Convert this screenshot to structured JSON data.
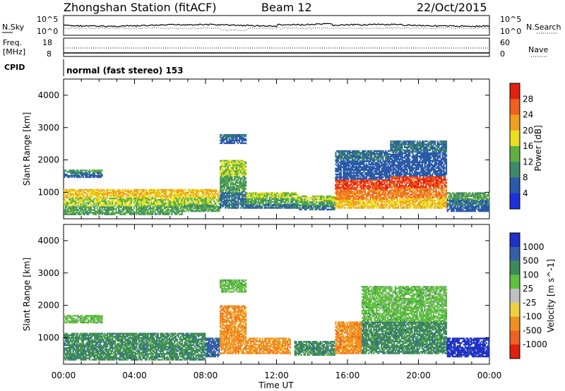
{
  "header": {
    "station": "Zhongshan Station (fitACF)",
    "beam": "Beam 12",
    "date": "22/Oct/2015"
  },
  "top_panel": {
    "left_label": "N.Sky",
    "right_label": "N.Search",
    "left_ticks": [
      "10^5",
      "10^0"
    ],
    "right_ticks": [
      "10^5",
      "10^0"
    ]
  },
  "freq_panel": {
    "left_label_1": "Freq.",
    "left_label_2": "[MHz]",
    "right_label": "Nave",
    "left_ticks": [
      "18",
      "8"
    ],
    "right_ticks": [
      "60",
      "0"
    ]
  },
  "cpid": {
    "label": "CPID",
    "text": "normal (fast stereo) 153"
  },
  "x_axis": {
    "label": "Time UT",
    "ticks": [
      "00:00",
      "04:00",
      "08:00",
      "12:00",
      "16:00",
      "20:00",
      "00:00"
    ]
  },
  "chart_data": [
    {
      "type": "heatmap",
      "title": "Power",
      "ylabel": "Slant Range [km]",
      "xlabel": "Time UT",
      "x_range_hours": [
        0,
        24
      ],
      "ylim": [
        180,
        4500
      ],
      "y_ticks": [
        1000,
        2000,
        3000,
        4000
      ],
      "colorbar": {
        "label": "Power [dB]",
        "range": [
          0,
          32
        ],
        "ticks": [
          4,
          8,
          12,
          16,
          20,
          24,
          28
        ],
        "colors": [
          "#2030e0",
          "#2a5aa8",
          "#3f8a6a",
          "#5fb040",
          "#e8e020",
          "#f0a020",
          "#f06020",
          "#e02010"
        ]
      },
      "echo_regions": [
        {
          "t0": 0.0,
          "t1": 6.7,
          "r0": 300,
          "r1": 1100,
          "level": 18
        },
        {
          "t0": 0.0,
          "t1": 2.2,
          "r0": 1450,
          "r1": 1700,
          "level": 8
        },
        {
          "t0": 6.7,
          "t1": 8.8,
          "r0": 400,
          "r1": 1100,
          "level": 16
        },
        {
          "t0": 8.8,
          "t1": 10.3,
          "r0": 500,
          "r1": 2000,
          "level": 12
        },
        {
          "t0": 8.8,
          "t1": 10.3,
          "r0": 2500,
          "r1": 2800,
          "level": 6
        },
        {
          "t0": 10.3,
          "t1": 13.2,
          "r0": 500,
          "r1": 1000,
          "level": 14
        },
        {
          "t0": 13.2,
          "t1": 15.3,
          "r0": 450,
          "r1": 900,
          "level": 12
        },
        {
          "t0": 15.3,
          "t1": 18.4,
          "r0": 500,
          "r1": 1400,
          "level": 26
        },
        {
          "t0": 15.3,
          "t1": 18.4,
          "r0": 1400,
          "r1": 2300,
          "level": 6
        },
        {
          "t0": 18.4,
          "t1": 21.6,
          "r0": 500,
          "r1": 1500,
          "level": 24
        },
        {
          "t0": 18.4,
          "t1": 21.6,
          "r0": 1500,
          "r1": 2600,
          "level": 6
        },
        {
          "t0": 21.6,
          "t1": 24.0,
          "r0": 400,
          "r1": 1000,
          "level": 10
        }
      ]
    },
    {
      "type": "heatmap",
      "title": "Velocity",
      "ylabel": "Slant Range [km]",
      "xlabel": "Time UT",
      "x_range_hours": [
        0,
        24
      ],
      "ylim": [
        180,
        4500
      ],
      "y_ticks": [
        1000,
        2000,
        3000,
        4000
      ],
      "colorbar": {
        "label": "Velocity [m s^-1]",
        "ticks": [
          "1000",
          "500",
          "100",
          "25",
          "-25",
          "-100",
          "-500",
          "-1000"
        ],
        "colors": [
          "#2030c8",
          "#3560a8",
          "#3f8a5a",
          "#60c040",
          "#c0c0c0",
          "#f0d040",
          "#f09020",
          "#f06020",
          "#e02010"
        ]
      },
      "echo_regions": [
        {
          "t0": 0.0,
          "t1": 8.0,
          "r0": 300,
          "r1": 1150,
          "level": "100"
        },
        {
          "t0": 0.0,
          "t1": 2.2,
          "r0": 1450,
          "r1": 1700,
          "level": "25"
        },
        {
          "t0": 8.0,
          "t1": 8.8,
          "r0": 400,
          "r1": 1000,
          "level": "500"
        },
        {
          "t0": 8.8,
          "t1": 10.3,
          "r0": 500,
          "r1": 2000,
          "level": "-500"
        },
        {
          "t0": 8.8,
          "t1": 10.3,
          "r0": 2400,
          "r1": 2800,
          "level": "25"
        },
        {
          "t0": 10.3,
          "t1": 12.8,
          "r0": 500,
          "r1": 1000,
          "level": "-500"
        },
        {
          "t0": 13.0,
          "t1": 15.3,
          "r0": 450,
          "r1": 900,
          "level": "100"
        },
        {
          "t0": 15.3,
          "t1": 16.8,
          "r0": 500,
          "r1": 1500,
          "level": "-500"
        },
        {
          "t0": 16.8,
          "t1": 21.6,
          "r0": 500,
          "r1": 1500,
          "level": "100"
        },
        {
          "t0": 16.8,
          "t1": 21.6,
          "r0": 1500,
          "r1": 2600,
          "level": "25"
        },
        {
          "t0": 21.6,
          "t1": 24.0,
          "r0": 400,
          "r1": 1000,
          "level": "1000"
        }
      ]
    }
  ]
}
